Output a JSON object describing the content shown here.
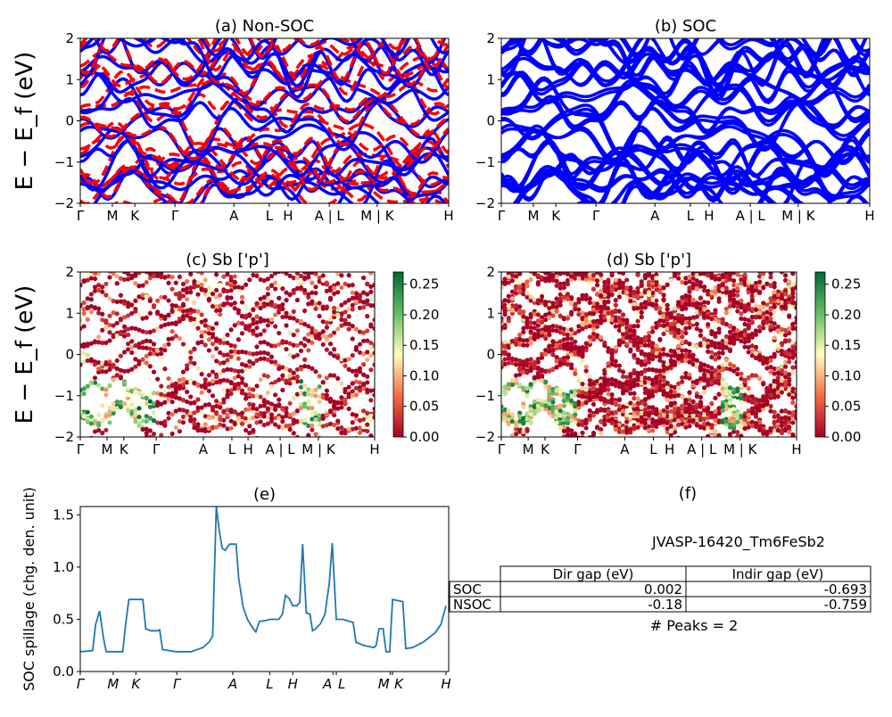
{
  "chart_data": [
    {
      "panel": "a",
      "type": "line",
      "title": "(a) Non-SOC",
      "ylabel": "E − E_f (eV)",
      "ylim": [
        -2,
        2
      ],
      "yticks": [
        "2",
        "1",
        "0",
        "−1",
        "−2"
      ],
      "xticks": [
        "Γ",
        "M",
        "K",
        "Γ",
        "A",
        "L",
        "H",
        "A | L",
        "M | K",
        "H"
      ],
      "xtick_pos": [
        0,
        0.087,
        0.148,
        0.257,
        0.417,
        0.513,
        0.564,
        0.676,
        0.806,
        1
      ],
      "series_colors": {
        "spin_up": "#0000ff",
        "spin_down": "#ff0000"
      },
      "line_styles": {
        "spin_up": "solid",
        "spin_down": "dashed"
      }
    },
    {
      "panel": "b",
      "type": "line",
      "title": "(b) SOC",
      "ylim": [
        -2,
        2
      ],
      "yticks": [
        "2",
        "1",
        "0",
        "−1",
        "−2"
      ],
      "xticks": [
        "Γ",
        "M",
        "K",
        "Γ",
        "A",
        "L",
        "H",
        "A | L",
        "M | K",
        "H"
      ],
      "xtick_pos": [
        0,
        0.087,
        0.148,
        0.257,
        0.417,
        0.513,
        0.564,
        0.676,
        0.806,
        1
      ],
      "color": "#0000ff"
    },
    {
      "panel": "c",
      "type": "scatter",
      "title": "(c)  Sb ['p']",
      "ylabel": "E − E_f (eV)",
      "ylim": [
        -2,
        2
      ],
      "yticks": [
        "2",
        "1",
        "0",
        "−1",
        "−2"
      ],
      "xticks": [
        "Γ",
        "M",
        "K",
        "Γ",
        "A",
        "L",
        "H",
        "A | L",
        "M | K",
        "H"
      ],
      "xtick_pos": [
        0,
        0.091,
        0.148,
        0.258,
        0.418,
        0.515,
        0.57,
        0.679,
        0.809,
        1
      ],
      "colormap": "RdYlGn",
      "clim": [
        0,
        0.27
      ],
      "colorbar_ticks": [
        "0.00",
        "0.05",
        "0.10",
        "0.15",
        "0.20",
        "0.25"
      ]
    },
    {
      "panel": "d",
      "type": "scatter",
      "title": "(d) Sb ['p']",
      "ylim": [
        -2,
        2
      ],
      "yticks": [
        "2",
        "1",
        "0",
        "−1",
        "−2"
      ],
      "xticks": [
        "Γ",
        "M",
        "K",
        "Γ",
        "A",
        "L",
        "H",
        "A | L",
        "M | K",
        "H"
      ],
      "xtick_pos": [
        0,
        0.091,
        0.148,
        0.258,
        0.418,
        0.515,
        0.57,
        0.679,
        0.809,
        1
      ],
      "colormap": "RdYlGn",
      "clim": [
        0,
        0.27
      ],
      "colorbar_ticks": [
        "0.00",
        "0.05",
        "0.10",
        "0.15",
        "0.20",
        "0.25"
      ]
    },
    {
      "panel": "e",
      "type": "line",
      "title": "(e)",
      "ylabel": "SOC spillage (chg. den. unit)",
      "ylim": [
        0,
        1.58
      ],
      "yticks": [
        "0.0",
        "0.5",
        "1.0",
        "1.5"
      ],
      "xticks": [
        "Γ",
        "M",
        "K",
        "Γ",
        "A",
        "L",
        "H",
        "A",
        "L",
        "M",
        "K",
        "H"
      ],
      "xtick_pos": [
        0,
        0.09,
        0.152,
        0.264,
        0.417,
        0.518,
        0.581,
        0.691,
        0.7,
        0.848,
        0.854,
        1
      ],
      "color": "#1f77b4",
      "x": [
        0,
        0.034,
        0.042,
        0.053,
        0.063,
        0.071,
        0.116,
        0.124,
        0.133,
        0.171,
        0.179,
        0.193,
        0.212,
        0.217,
        0.225,
        0.262,
        0.303,
        0.335,
        0.352,
        0.362,
        0.372,
        0.38,
        0.388,
        0.396,
        0.408,
        0.426,
        0.433,
        0.445,
        0.457,
        0.469,
        0.48,
        0.49,
        0.51,
        0.518,
        0.543,
        0.553,
        0.561,
        0.571,
        0.581,
        0.592,
        0.6,
        0.608,
        0.618,
        0.628,
        0.635,
        0.644,
        0.657,
        0.669,
        0.681,
        0.689,
        0.7,
        0.718,
        0.746,
        0.754,
        0.775,
        0.803,
        0.809,
        0.817,
        0.828,
        0.836,
        0.846,
        0.854,
        0.882,
        0.89,
        0.909,
        0.937,
        0.97,
        0.986,
        1
      ],
      "y": [
        0.19,
        0.2,
        0.45,
        0.58,
        0.33,
        0.19,
        0.19,
        0.45,
        0.69,
        0.69,
        0.41,
        0.39,
        0.39,
        0.4,
        0.21,
        0.19,
        0.19,
        0.23,
        0.28,
        0.34,
        1.58,
        1.35,
        1.18,
        1.16,
        1.22,
        1.22,
        0.9,
        0.62,
        0.5,
        0.43,
        0.38,
        0.48,
        0.49,
        0.5,
        0.5,
        0.55,
        0.73,
        0.7,
        0.63,
        0.63,
        0.66,
        1.22,
        0.56,
        0.55,
        0.39,
        0.41,
        0.46,
        0.55,
        0.85,
        1.23,
        0.5,
        0.5,
        0.47,
        0.28,
        0.25,
        0.23,
        0.25,
        0.41,
        0.41,
        0.19,
        0.19,
        0.69,
        0.67,
        0.22,
        0.23,
        0.28,
        0.37,
        0.45,
        0.63
      ]
    },
    {
      "panel": "f",
      "type": "table",
      "title": "(f)",
      "material": "JVASP-16420_Tm6FeSb2",
      "columns": [
        "Dir gap (eV)",
        "Indir gap (eV)"
      ],
      "rows": [
        {
          "label": "SOC",
          "values": [
            "0.002",
            "-0.693"
          ]
        },
        {
          "label": "NSOC",
          "values": [
            "-0.18",
            "-0.759"
          ]
        }
      ],
      "footer": "# Peaks = 2"
    }
  ]
}
